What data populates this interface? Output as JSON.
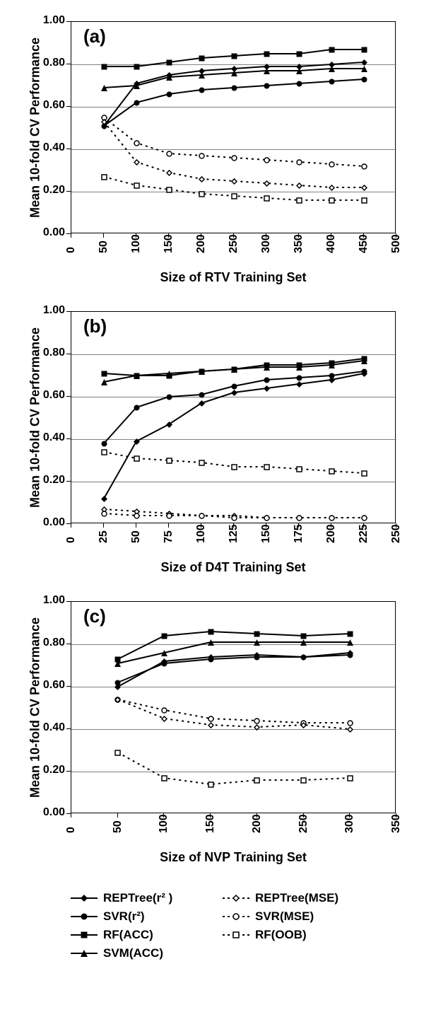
{
  "global": {
    "bg_color": "#ffffff",
    "grid_color": "#808080",
    "axis_color": "#000000",
    "line_width": 2,
    "marker_size": 9,
    "ylabel": "Mean 10-fold CV Performance",
    "ylabel_fontsize": 18,
    "xlabel_fontsize": 18,
    "tick_fontsize": 16,
    "panel_label_fontsize": 26,
    "ylim": [
      0.0,
      1.0
    ],
    "ytick_step": 0.2
  },
  "legend_items": [
    {
      "label": "REPTree(r² )",
      "marker": "diamond-filled",
      "line": "solid"
    },
    {
      "label": "REPTree(MSE)",
      "marker": "diamond-open",
      "line": "dotted"
    },
    {
      "label": "SVR(r²)",
      "marker": "circle-filled",
      "line": "solid"
    },
    {
      "label": "SVR(MSE)",
      "marker": "circle-open",
      "line": "dotted"
    },
    {
      "label": "RF(ACC)",
      "marker": "square-filled",
      "line": "solid"
    },
    {
      "label": "RF(OOB)",
      "marker": "square-open",
      "line": "dotted"
    },
    {
      "label": "SVM(ACC)",
      "marker": "triangle-filled",
      "line": "solid"
    }
  ],
  "charts": {
    "a": {
      "panel_label": "(a)",
      "xlabel": "Size of RTV Training Set",
      "xlim": [
        0,
        500
      ],
      "xtick_step": 50,
      "series": [
        {
          "key": "RF_ACC",
          "marker": "square-filled",
          "line": "solid",
          "x": [
            50,
            100,
            150,
            200,
            250,
            300,
            350,
            400,
            450
          ],
          "y": [
            0.79,
            0.79,
            0.81,
            0.83,
            0.84,
            0.85,
            0.85,
            0.87,
            0.87
          ]
        },
        {
          "key": "REPTree_r2",
          "marker": "diamond-filled",
          "line": "solid",
          "x": [
            50,
            100,
            150,
            200,
            250,
            300,
            350,
            400,
            450
          ],
          "y": [
            0.51,
            0.71,
            0.75,
            0.77,
            0.78,
            0.79,
            0.79,
            0.8,
            0.81
          ]
        },
        {
          "key": "SVM_ACC",
          "marker": "triangle-filled",
          "line": "solid",
          "x": [
            50,
            100,
            150,
            200,
            250,
            300,
            350,
            400,
            450
          ],
          "y": [
            0.69,
            0.7,
            0.74,
            0.75,
            0.76,
            0.77,
            0.77,
            0.78,
            0.78
          ]
        },
        {
          "key": "SVR_r2",
          "marker": "circle-filled",
          "line": "solid",
          "x": [
            50,
            100,
            150,
            200,
            250,
            300,
            350,
            400,
            450
          ],
          "y": [
            0.51,
            0.62,
            0.66,
            0.68,
            0.69,
            0.7,
            0.71,
            0.72,
            0.73
          ]
        },
        {
          "key": "SVR_MSE",
          "marker": "circle-open",
          "line": "dotted",
          "x": [
            50,
            100,
            150,
            200,
            250,
            300,
            350,
            400,
            450
          ],
          "y": [
            0.55,
            0.43,
            0.38,
            0.37,
            0.36,
            0.35,
            0.34,
            0.33,
            0.32
          ]
        },
        {
          "key": "REPTree_MSE",
          "marker": "diamond-open",
          "line": "dotted",
          "x": [
            50,
            100,
            150,
            200,
            250,
            300,
            350,
            400,
            450
          ],
          "y": [
            0.53,
            0.34,
            0.29,
            0.26,
            0.25,
            0.24,
            0.23,
            0.22,
            0.22
          ]
        },
        {
          "key": "RF_OOB",
          "marker": "square-open",
          "line": "dotted",
          "x": [
            50,
            100,
            150,
            200,
            250,
            300,
            350,
            400,
            450
          ],
          "y": [
            0.27,
            0.23,
            0.21,
            0.19,
            0.18,
            0.17,
            0.16,
            0.16,
            0.16
          ]
        }
      ]
    },
    "b": {
      "panel_label": "(b)",
      "xlabel": "Size of D4T Training Set",
      "xlim": [
        0,
        250
      ],
      "xtick_step": 25,
      "series": [
        {
          "key": "RF_ACC",
          "marker": "square-filled",
          "line": "solid",
          "x": [
            25,
            50,
            75,
            100,
            125,
            150,
            175,
            200,
            225
          ],
          "y": [
            0.71,
            0.7,
            0.7,
            0.72,
            0.73,
            0.75,
            0.75,
            0.76,
            0.78
          ]
        },
        {
          "key": "SVM_ACC",
          "marker": "triangle-filled",
          "line": "solid",
          "x": [
            25,
            50,
            75,
            100,
            125,
            150,
            175,
            200,
            225
          ],
          "y": [
            0.67,
            0.7,
            0.71,
            0.72,
            0.73,
            0.74,
            0.74,
            0.75,
            0.77
          ]
        },
        {
          "key": "SVR_r2",
          "marker": "circle-filled",
          "line": "solid",
          "x": [
            25,
            50,
            75,
            100,
            125,
            150,
            175,
            200,
            225
          ],
          "y": [
            0.38,
            0.55,
            0.6,
            0.61,
            0.65,
            0.68,
            0.69,
            0.7,
            0.72
          ]
        },
        {
          "key": "REPTree_r2",
          "marker": "diamond-filled",
          "line": "solid",
          "x": [
            25,
            50,
            75,
            100,
            125,
            150,
            175,
            200,
            225
          ],
          "y": [
            0.12,
            0.39,
            0.47,
            0.57,
            0.62,
            0.64,
            0.66,
            0.68,
            0.71
          ]
        },
        {
          "key": "RF_OOB",
          "marker": "square-open",
          "line": "dotted",
          "x": [
            25,
            50,
            75,
            100,
            125,
            150,
            175,
            200,
            225
          ],
          "y": [
            0.34,
            0.31,
            0.3,
            0.29,
            0.27,
            0.27,
            0.26,
            0.25,
            0.24
          ]
        },
        {
          "key": "REPTree_MSE",
          "marker": "diamond-open",
          "line": "dotted",
          "x": [
            25,
            50,
            75,
            100,
            125,
            150,
            175,
            200,
            225
          ],
          "y": [
            0.07,
            0.06,
            0.05,
            0.04,
            0.04,
            0.03,
            0.03,
            0.03,
            0.03
          ]
        },
        {
          "key": "SVR_MSE",
          "marker": "circle-open",
          "line": "dotted",
          "x": [
            25,
            50,
            75,
            100,
            125,
            150,
            175,
            200,
            225
          ],
          "y": [
            0.05,
            0.04,
            0.04,
            0.04,
            0.03,
            0.03,
            0.03,
            0.03,
            0.03
          ]
        }
      ]
    },
    "c": {
      "panel_label": "(c)",
      "xlabel": "Size of NVP Training Set",
      "xlim": [
        0,
        350
      ],
      "xtick_step": 50,
      "series": [
        {
          "key": "RF_ACC",
          "marker": "square-filled",
          "line": "solid",
          "x": [
            50,
            100,
            150,
            200,
            250,
            300
          ],
          "y": [
            0.73,
            0.84,
            0.86,
            0.85,
            0.84,
            0.85
          ]
        },
        {
          "key": "SVM_ACC",
          "marker": "triangle-filled",
          "line": "solid",
          "x": [
            50,
            100,
            150,
            200,
            250,
            300
          ],
          "y": [
            0.71,
            0.76,
            0.81,
            0.81,
            0.81,
            0.81
          ]
        },
        {
          "key": "REPTree_r2",
          "marker": "diamond-filled",
          "line": "solid",
          "x": [
            50,
            100,
            150,
            200,
            250,
            300
          ],
          "y": [
            0.6,
            0.72,
            0.74,
            0.75,
            0.74,
            0.76
          ]
        },
        {
          "key": "SVR_r2",
          "marker": "circle-filled",
          "line": "solid",
          "x": [
            50,
            100,
            150,
            200,
            250,
            300
          ],
          "y": [
            0.62,
            0.71,
            0.73,
            0.74,
            0.74,
            0.75
          ]
        },
        {
          "key": "SVR_MSE",
          "marker": "circle-open",
          "line": "dotted",
          "x": [
            50,
            100,
            150,
            200,
            250,
            300
          ],
          "y": [
            0.54,
            0.49,
            0.45,
            0.44,
            0.43,
            0.43
          ]
        },
        {
          "key": "REPTree_MSE",
          "marker": "diamond-open",
          "line": "dotted",
          "x": [
            50,
            100,
            150,
            200,
            250,
            300
          ],
          "y": [
            0.54,
            0.45,
            0.42,
            0.41,
            0.42,
            0.4
          ]
        },
        {
          "key": "RF_OOB",
          "marker": "square-open",
          "line": "dotted",
          "x": [
            50,
            100,
            150,
            200,
            250,
            300
          ],
          "y": [
            0.29,
            0.17,
            0.14,
            0.16,
            0.16,
            0.17
          ]
        }
      ]
    }
  }
}
